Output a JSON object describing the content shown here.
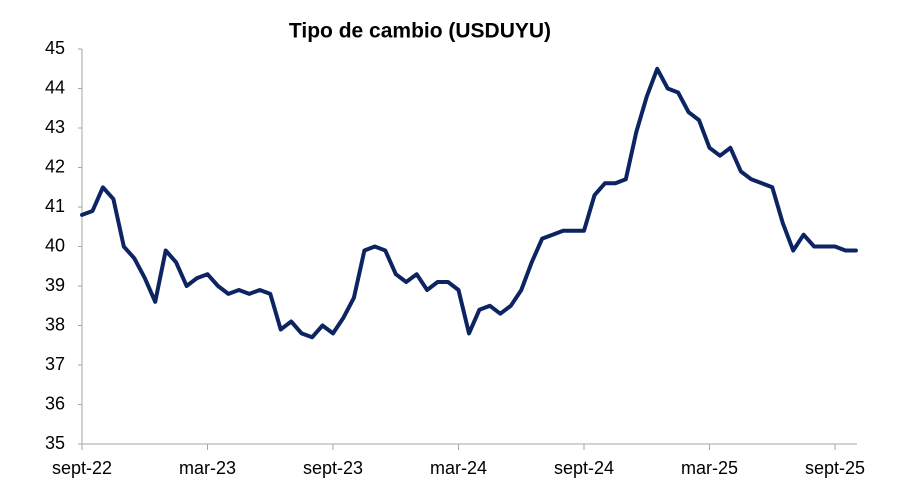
{
  "chart_data": {
    "type": "line",
    "title": "Tipo de cambio (USDUYU)",
    "categories": [
      "sept-22",
      null,
      null,
      null,
      null,
      null,
      null,
      null,
      null,
      null,
      null,
      null,
      "mar-23",
      null,
      null,
      null,
      null,
      null,
      null,
      null,
      null,
      null,
      null,
      null,
      "sept-23",
      null,
      null,
      null,
      null,
      null,
      null,
      null,
      null,
      null,
      null,
      null,
      "mar-24",
      null,
      null,
      null,
      null,
      null,
      null,
      null,
      null,
      null,
      null,
      null,
      "sept-24",
      null,
      null,
      null,
      null,
      null,
      null,
      null,
      null,
      null,
      null,
      null,
      "mar-25",
      null,
      null,
      null,
      null,
      null,
      null,
      null,
      null,
      null,
      null,
      null,
      "sept-25",
      null,
      null
    ],
    "values": [
      40.8,
      40.9,
      41.5,
      41.2,
      40.0,
      39.7,
      39.2,
      38.6,
      39.9,
      39.6,
      39.0,
      39.2,
      39.3,
      39.0,
      38.8,
      38.9,
      38.8,
      38.9,
      38.8,
      37.9,
      38.1,
      37.8,
      37.7,
      38.0,
      37.8,
      38.2,
      38.7,
      39.9,
      40.0,
      39.9,
      39.3,
      39.1,
      39.3,
      38.9,
      39.1,
      39.1,
      38.9,
      37.8,
      38.4,
      38.5,
      38.3,
      38.5,
      38.9,
      39.6,
      40.2,
      40.3,
      40.4,
      40.4,
      40.4,
      41.3,
      41.6,
      41.6,
      41.7,
      42.9,
      43.8,
      44.5,
      44.0,
      43.9,
      43.4,
      43.2,
      42.5,
      42.3,
      42.5,
      41.9,
      41.7,
      41.6,
      41.5,
      40.6,
      39.9,
      40.3,
      40.0,
      40.0,
      40.0,
      39.9,
      39.9
    ],
    "color": "#0c2461",
    "ylim": [
      35,
      45
    ],
    "yticks": [
      35,
      36,
      37,
      38,
      39,
      40,
      41,
      42,
      43,
      44,
      45
    ],
    "grid": false
  }
}
